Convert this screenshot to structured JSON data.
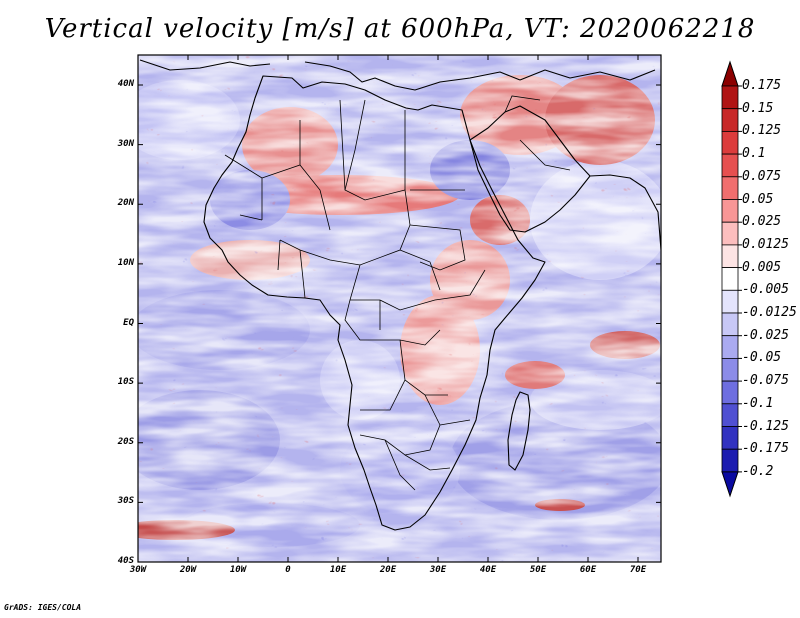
{
  "title": "Vertical velocity [m/s] at 600hPa, VT: 2020062218",
  "credit": "GrADS: IGES/COLA",
  "map": {
    "lat_labels": [
      "40N",
      "30N",
      "20N",
      "10N",
      "EQ",
      "10S",
      "20S",
      "30S",
      "40S"
    ],
    "lon_labels": [
      "30W",
      "20W",
      "10W",
      "0",
      "10E",
      "20E",
      "30E",
      "40E",
      "50E",
      "60E",
      "70E"
    ]
  },
  "colorbar": {
    "levels": [
      "0.175",
      "0.15",
      "0.125",
      "0.1",
      "0.075",
      "0.05",
      "0.025",
      "0.0125",
      "0.005",
      "-0.005",
      "-0.0125",
      "-0.025",
      "-0.05",
      "-0.075",
      "-0.1",
      "-0.125",
      "-0.175",
      "-0.2"
    ],
    "colors": [
      "#8b0000",
      "#b01414",
      "#c82828",
      "#dc3c3c",
      "#e65050",
      "#f06e6e",
      "#f89696",
      "#fcbebe",
      "#fde4e4",
      "#ffffff",
      "#e4e4fc",
      "#c8c8f6",
      "#aaaaf0",
      "#8c8ce8",
      "#6e6ee0",
      "#5050d2",
      "#3232c0",
      "#1c1cb0",
      "#0a0aa0"
    ]
  },
  "colors": {
    "background": "#ffffff",
    "sinking": "#6e6ee0",
    "rising": "#dc3c3c"
  }
}
